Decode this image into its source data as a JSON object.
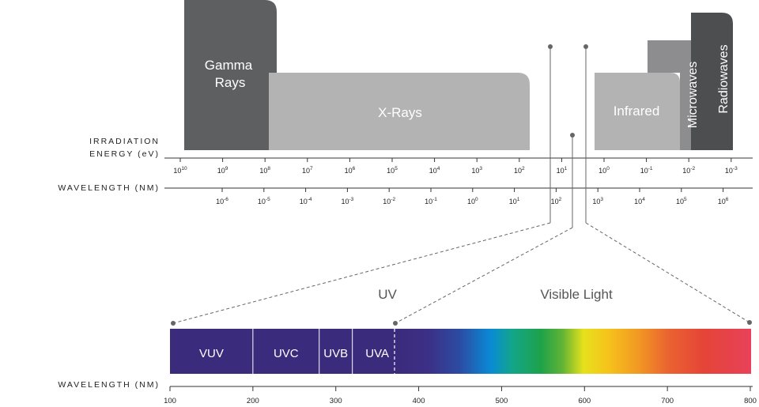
{
  "bands": {
    "gamma": {
      "line1": "Gamma",
      "line2": "Rays",
      "color": "#5e5f61"
    },
    "xrays": {
      "label": "X-Rays",
      "color": "#b3b3b3"
    },
    "infrared": {
      "label": "Infrared",
      "color": "#b3b3b3"
    },
    "microwaves": {
      "label": "Microwaves",
      "color": "#8d8d8f"
    },
    "radiowaves": {
      "label": "Radiowaves",
      "color": "#4d4e50"
    }
  },
  "energy_axis": {
    "title_line1": "IRRADIATION",
    "title_line2": "ENERGY (eV)",
    "ticks": [
      {
        "base": "10",
        "exp": "10"
      },
      {
        "base": "10",
        "exp": "9"
      },
      {
        "base": "10",
        "exp": "8"
      },
      {
        "base": "10",
        "exp": "7"
      },
      {
        "base": "10",
        "exp": "6"
      },
      {
        "base": "10",
        "exp": "5"
      },
      {
        "base": "10",
        "exp": "4"
      },
      {
        "base": "10",
        "exp": "3"
      },
      {
        "base": "10",
        "exp": "2"
      },
      {
        "base": "10",
        "exp": "1"
      },
      {
        "base": "10",
        "exp": "0"
      },
      {
        "base": "10",
        "exp": "-1"
      },
      {
        "base": "10",
        "exp": "-2"
      },
      {
        "base": "10",
        "exp": "-3"
      }
    ]
  },
  "wavelength_axis_top": {
    "title": "WAVELENGTH (NM)",
    "ticks": [
      {
        "base": "10",
        "exp": "-6"
      },
      {
        "base": "10",
        "exp": "-5"
      },
      {
        "base": "10",
        "exp": "-4"
      },
      {
        "base": "10",
        "exp": "-3"
      },
      {
        "base": "10",
        "exp": "-2"
      },
      {
        "base": "10",
        "exp": "-1"
      },
      {
        "base": "10",
        "exp": "0"
      },
      {
        "base": "10",
        "exp": "1"
      },
      {
        "base": "10",
        "exp": "2"
      },
      {
        "base": "10",
        "exp": "3"
      },
      {
        "base": "10",
        "exp": "4"
      },
      {
        "base": "10",
        "exp": "5"
      },
      {
        "base": "10",
        "exp": "6"
      }
    ]
  },
  "regions": {
    "uv": "UV",
    "visible": "Visible Light"
  },
  "uv_bands": [
    {
      "label": "VUV",
      "from": 100,
      "to": 200
    },
    {
      "label": "UVC",
      "from": 200,
      "to": 280
    },
    {
      "label": "UVB",
      "from": 280,
      "to": 320
    },
    {
      "label": "UVA",
      "from": 320,
      "to": 380
    }
  ],
  "wavelength_axis_bottom": {
    "title": "WAVELENGTH (NM)",
    "min": 100,
    "max": 800,
    "ticks": [
      "100",
      "200",
      "300",
      "400",
      "500",
      "600",
      "700",
      "800"
    ]
  },
  "colors": {
    "uv_band": "#3b2b7c",
    "axis": "#333333",
    "marker": "#666666",
    "label_dark": "#222222",
    "label_light": "#ffffff",
    "region_label": "#555555"
  }
}
